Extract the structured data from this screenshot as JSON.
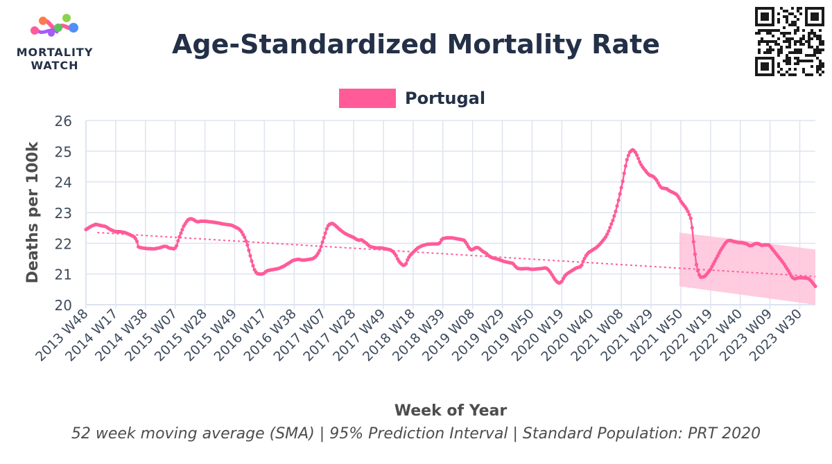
{
  "header": {
    "title": "Age-Standardized Mortality Rate",
    "logo_line1": "MORTALITY",
    "logo_line2": "WATCH"
  },
  "caption": "52 week moving average (SMA) | 95% Prediction Interval | Standard Population: PRT 2020",
  "colors": {
    "series": "#ff5b99",
    "band": "#ffc2d8",
    "trend": "#ff5b99",
    "grid": "#dde3f0",
    "text": "#233047"
  },
  "chart_data": {
    "type": "line",
    "xlabel": "Week of Year",
    "ylabel": "Deaths per 100k",
    "ylim": [
      20,
      26
    ],
    "yticks": [
      20,
      21,
      22,
      23,
      24,
      25,
      26
    ],
    "legend_position": "top-center",
    "grid": true,
    "x_start": "2013 W48",
    "week_count": 516,
    "tick_labels": [
      "2013 W48",
      "2014 W17",
      "2014 W38",
      "2015 W07",
      "2015 W28",
      "2015 W49",
      "2016 W17",
      "2016 W38",
      "2017 W07",
      "2017 W28",
      "2017 W49",
      "2018 W18",
      "2018 W39",
      "2019 W08",
      "2019 W29",
      "2019 W50",
      "2020 W19",
      "2020 W40",
      "2021 W08",
      "2021 W29",
      "2021 W50",
      "2022 W19",
      "2022 W40",
      "2023 W09",
      "2023 W30"
    ],
    "tick_interval_weeks": 21,
    "series": [
      {
        "name": "Portugal",
        "anchors": [
          [
            0,
            22.45
          ],
          [
            4,
            22.55
          ],
          [
            8,
            22.62
          ],
          [
            12,
            22.58
          ],
          [
            16,
            22.55
          ],
          [
            20,
            22.45
          ],
          [
            24,
            22.38
          ],
          [
            28,
            22.38
          ],
          [
            32,
            22.35
          ],
          [
            36,
            22.28
          ],
          [
            40,
            22.2
          ],
          [
            42,
            22.05
          ],
          [
            43,
            21.88
          ],
          [
            46,
            21.85
          ],
          [
            50,
            21.83
          ],
          [
            56,
            21.82
          ],
          [
            60,
            21.85
          ],
          [
            64,
            21.9
          ],
          [
            66,
            21.9
          ],
          [
            68,
            21.85
          ],
          [
            72,
            21.82
          ],
          [
            74,
            21.88
          ],
          [
            76,
            22.15
          ],
          [
            78,
            22.35
          ],
          [
            80,
            22.55
          ],
          [
            82,
            22.68
          ],
          [
            84,
            22.78
          ],
          [
            86,
            22.8
          ],
          [
            88,
            22.78
          ],
          [
            90,
            22.72
          ],
          [
            92,
            22.7
          ],
          [
            94,
            22.72
          ],
          [
            98,
            22.72
          ],
          [
            102,
            22.7
          ],
          [
            106,
            22.68
          ],
          [
            110,
            22.65
          ],
          [
            114,
            22.62
          ],
          [
            118,
            22.6
          ],
          [
            120,
            22.58
          ],
          [
            124,
            22.5
          ],
          [
            126,
            22.45
          ],
          [
            128,
            22.35
          ],
          [
            130,
            22.2
          ],
          [
            132,
            22.0
          ],
          [
            134,
            21.7
          ],
          [
            136,
            21.4
          ],
          [
            138,
            21.15
          ],
          [
            140,
            21.02
          ],
          [
            142,
            21.0
          ],
          [
            144,
            21.0
          ],
          [
            146,
            21.02
          ],
          [
            148,
            21.1
          ],
          [
            150,
            21.12
          ],
          [
            154,
            21.15
          ],
          [
            158,
            21.18
          ],
          [
            162,
            21.25
          ],
          [
            166,
            21.35
          ],
          [
            170,
            21.45
          ],
          [
            174,
            21.48
          ],
          [
            178,
            21.45
          ],
          [
            182,
            21.47
          ],
          [
            186,
            21.5
          ],
          [
            188,
            21.55
          ],
          [
            190,
            21.65
          ],
          [
            192,
            21.8
          ],
          [
            194,
            22.05
          ],
          [
            196,
            22.3
          ],
          [
            198,
            22.55
          ],
          [
            200,
            22.63
          ],
          [
            202,
            22.65
          ],
          [
            204,
            22.6
          ],
          [
            208,
            22.45
          ],
          [
            212,
            22.33
          ],
          [
            216,
            22.25
          ],
          [
            220,
            22.18
          ],
          [
            222,
            22.12
          ],
          [
            224,
            22.1
          ],
          [
            226,
            22.12
          ],
          [
            228,
            22.05
          ],
          [
            230,
            22.0
          ],
          [
            232,
            21.92
          ],
          [
            234,
            21.88
          ],
          [
            238,
            21.85
          ],
          [
            242,
            21.85
          ],
          [
            246,
            21.82
          ],
          [
            250,
            21.78
          ],
          [
            252,
            21.72
          ],
          [
            254,
            21.62
          ],
          [
            256,
            21.45
          ],
          [
            258,
            21.35
          ],
          [
            260,
            21.28
          ],
          [
            262,
            21.3
          ],
          [
            264,
            21.5
          ],
          [
            266,
            21.62
          ],
          [
            268,
            21.7
          ],
          [
            272,
            21.85
          ],
          [
            276,
            21.93
          ],
          [
            280,
            21.97
          ],
          [
            284,
            21.98
          ],
          [
            288,
            21.98
          ],
          [
            290,
            22.0
          ],
          [
            292,
            22.15
          ],
          [
            296,
            22.18
          ],
          [
            300,
            22.18
          ],
          [
            304,
            22.15
          ],
          [
            308,
            22.12
          ],
          [
            310,
            22.1
          ],
          [
            312,
            22.0
          ],
          [
            314,
            21.85
          ],
          [
            316,
            21.78
          ],
          [
            318,
            21.82
          ],
          [
            320,
            21.87
          ],
          [
            322,
            21.85
          ],
          [
            324,
            21.78
          ],
          [
            326,
            21.72
          ],
          [
            328,
            21.68
          ],
          [
            330,
            21.6
          ],
          [
            332,
            21.55
          ],
          [
            334,
            21.52
          ],
          [
            338,
            21.48
          ],
          [
            342,
            21.42
          ],
          [
            346,
            21.38
          ],
          [
            350,
            21.35
          ],
          [
            352,
            21.25
          ],
          [
            354,
            21.18
          ],
          [
            358,
            21.17
          ],
          [
            362,
            21.18
          ],
          [
            366,
            21.15
          ],
          [
            370,
            21.17
          ],
          [
            374,
            21.18
          ],
          [
            376,
            21.2
          ],
          [
            378,
            21.18
          ],
          [
            380,
            21.1
          ],
          [
            382,
            20.98
          ],
          [
            384,
            20.85
          ],
          [
            386,
            20.75
          ],
          [
            388,
            20.7
          ],
          [
            390,
            20.75
          ],
          [
            392,
            20.9
          ],
          [
            394,
            21.0
          ],
          [
            396,
            21.05
          ],
          [
            398,
            21.1
          ],
          [
            400,
            21.15
          ],
          [
            402,
            21.2
          ],
          [
            404,
            21.22
          ],
          [
            406,
            21.25
          ],
          [
            408,
            21.45
          ],
          [
            410,
            21.6
          ],
          [
            412,
            21.7
          ],
          [
            414,
            21.75
          ],
          [
            416,
            21.8
          ],
          [
            418,
            21.85
          ],
          [
            420,
            21.92
          ],
          [
            422,
            22.0
          ],
          [
            424,
            22.1
          ],
          [
            426,
            22.2
          ],
          [
            428,
            22.35
          ],
          [
            430,
            22.55
          ],
          [
            432,
            22.75
          ],
          [
            434,
            23.0
          ],
          [
            436,
            23.3
          ],
          [
            438,
            23.65
          ],
          [
            440,
            24.0
          ],
          [
            442,
            24.45
          ],
          [
            444,
            24.8
          ],
          [
            446,
            24.98
          ],
          [
            448,
            25.05
          ],
          [
            450,
            25.0
          ],
          [
            452,
            24.85
          ],
          [
            454,
            24.65
          ],
          [
            456,
            24.5
          ],
          [
            458,
            24.4
          ],
          [
            460,
            24.3
          ],
          [
            462,
            24.22
          ],
          [
            464,
            24.2
          ],
          [
            466,
            24.15
          ],
          [
            468,
            24.05
          ],
          [
            470,
            23.9
          ],
          [
            472,
            23.8
          ],
          [
            476,
            23.78
          ],
          [
            478,
            23.72
          ],
          [
            480,
            23.68
          ],
          [
            484,
            23.6
          ],
          [
            486,
            23.5
          ],
          [
            488,
            23.35
          ],
          [
            490,
            23.25
          ],
          [
            492,
            23.15
          ],
          [
            494,
            23.0
          ],
          [
            496,
            22.8
          ],
          [
            497,
            22.5
          ],
          [
            498,
            22.1
          ],
          [
            499,
            21.75
          ],
          [
            500,
            21.4
          ],
          [
            501,
            21.2
          ],
          [
            502,
            21.05
          ],
          [
            503,
            20.95
          ],
          [
            504,
            20.9
          ],
          [
            506,
            20.9
          ],
          [
            508,
            20.95
          ],
          [
            510,
            21.05
          ],
          [
            512,
            21.15
          ],
          [
            514,
            21.3
          ],
          [
            516,
            21.45
          ],
          [
            518,
            21.6
          ],
          [
            520,
            21.75
          ],
          [
            522,
            21.88
          ],
          [
            524,
            22.0
          ],
          [
            526,
            22.08
          ],
          [
            528,
            22.1
          ],
          [
            530,
            22.07
          ],
          [
            534,
            22.03
          ],
          [
            538,
            22.02
          ],
          [
            542,
            21.98
          ],
          [
            544,
            21.92
          ],
          [
            546,
            21.93
          ],
          [
            548,
            21.98
          ],
          [
            550,
            22.0
          ],
          [
            552,
            21.98
          ],
          [
            554,
            21.93
          ],
          [
            556,
            21.95
          ],
          [
            558,
            21.95
          ],
          [
            560,
            21.95
          ],
          [
            562,
            21.85
          ],
          [
            564,
            21.75
          ],
          [
            566,
            21.65
          ],
          [
            568,
            21.55
          ],
          [
            570,
            21.45
          ],
          [
            572,
            21.35
          ],
          [
            574,
            21.22
          ],
          [
            576,
            21.1
          ],
          [
            578,
            20.95
          ],
          [
            580,
            20.85
          ],
          [
            582,
            20.85
          ],
          [
            584,
            20.88
          ],
          [
            588,
            20.88
          ],
          [
            592,
            20.86
          ],
          [
            594,
            20.8
          ],
          [
            596,
            20.7
          ],
          [
            598,
            20.6
          ]
        ]
      }
    ],
    "trend_line": {
      "start_value": 22.35,
      "end_value": 20.92
    },
    "prediction_interval": {
      "start_week_index": 419,
      "upper": [
        22.35,
        21.8
      ],
      "lower": [
        20.6,
        20.0
      ]
    }
  }
}
